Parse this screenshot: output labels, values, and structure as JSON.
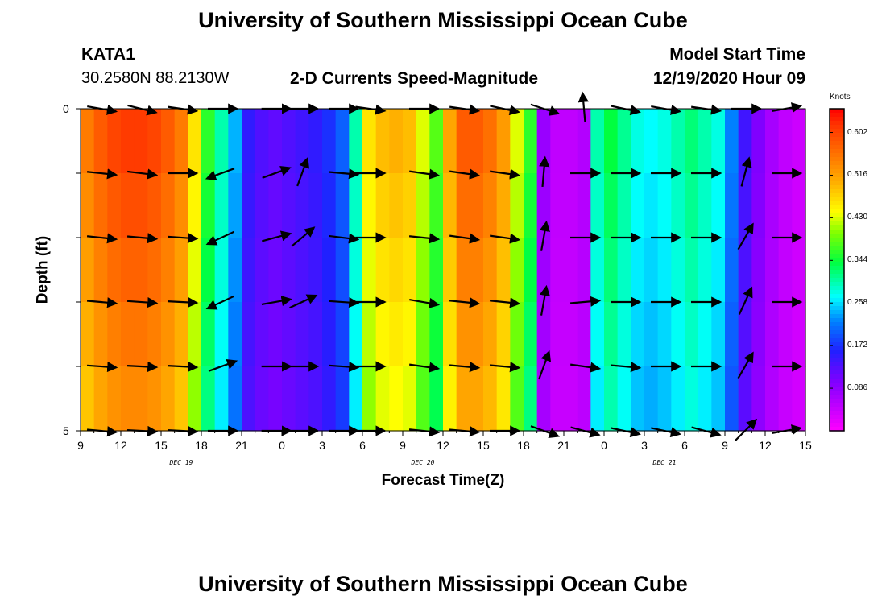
{
  "header": {
    "title": "University of Southern Mississippi Ocean Cube",
    "station": "KATA1",
    "coords": "30.2580N 88.2130W",
    "subtitle": "2-D Currents Speed-Magnitude",
    "model_start_label": "Model Start Time",
    "model_start_value": "12/19/2020 Hour 09"
  },
  "footer": {
    "title": "University of Southern Mississippi Ocean Cube"
  },
  "chart_data": {
    "type": "heatmap",
    "title": "2-D Currents Speed-Magnitude",
    "xlabel": "Forecast Time(Z)",
    "ylabel": "Depth (ft)",
    "x_ticks": [
      "9",
      "12",
      "15",
      "18",
      "21",
      "0",
      "3",
      "6",
      "9",
      "12",
      "15",
      "18",
      "21",
      "0",
      "3",
      "6",
      "9",
      "12",
      "15"
    ],
    "day_labels": [
      {
        "label": "DEC 19",
        "tick_index": 2.5
      },
      {
        "label": "DEC 20",
        "tick_index": 8.5
      },
      {
        "label": "DEC 21",
        "tick_index": 14.5
      }
    ],
    "y_ticks": [
      "0",
      "5"
    ],
    "ylim": [
      0,
      5
    ],
    "xrange_hours": [
      0,
      54
    ],
    "colorbar": {
      "unit": "Knots",
      "ticks": [
        "0.602",
        "0.516",
        "0.430",
        "0.344",
        "0.258",
        "0.172",
        "0.086"
      ],
      "range": [
        0.0,
        0.65
      ]
    },
    "speed_knots_by_hour": [
      0.55,
      0.58,
      0.6,
      0.61,
      0.61,
      0.6,
      0.58,
      0.55,
      0.46,
      0.36,
      0.3,
      0.24,
      0.15,
      0.13,
      0.12,
      0.13,
      0.14,
      0.15,
      0.17,
      0.2,
      0.3,
      0.46,
      0.49,
      0.5,
      0.49,
      0.43,
      0.38,
      0.51,
      0.58,
      0.58,
      0.56,
      0.52,
      0.43,
      0.36,
      0.08,
      0.05,
      0.05,
      0.06,
      0.3,
      0.34,
      0.31,
      0.28,
      0.27,
      0.28,
      0.3,
      0.32,
      0.3,
      0.28,
      0.22,
      0.14,
      0.1,
      0.07,
      0.05,
      0.04,
      0.2
    ],
    "vector_times_hours": [
      1.5,
      4.5,
      7.5,
      10.5,
      14.5,
      16.5,
      19.5,
      21.5,
      25.5,
      28.5,
      31.5,
      34.5,
      37.5,
      40.5,
      43.5,
      46.5,
      49.5,
      52.5
    ],
    "vector_depth_rows": [
      0,
      1,
      2,
      3,
      4,
      5
    ],
    "vector_angles_deg": [
      [
        -10,
        -14,
        -8,
        0,
        0,
        0,
        0,
        -8,
        0,
        -8,
        -12,
        -18,
        95,
        -12,
        -10,
        -8,
        0,
        10
      ],
      [
        -6,
        -7,
        0,
        -160,
        20,
        70,
        -5,
        0,
        -8,
        -8,
        -8,
        85,
        0,
        0,
        0,
        0,
        75,
        0
      ],
      [
        -6,
        -5,
        -4,
        -155,
        15,
        40,
        -7,
        0,
        -6,
        -8,
        -8,
        80,
        0,
        0,
        0,
        0,
        60,
        0
      ],
      [
        -5,
        -4,
        -3,
        -155,
        10,
        25,
        -4,
        0,
        -10,
        -6,
        -6,
        80,
        5,
        0,
        0,
        0,
        65,
        0
      ],
      [
        -4,
        -3,
        -3,
        20,
        0,
        0,
        -4,
        0,
        -8,
        -5,
        -5,
        70,
        -8,
        -5,
        0,
        0,
        60,
        0
      ],
      [
        -5,
        -3,
        -3,
        0,
        0,
        0,
        0,
        0,
        -6,
        -5,
        0,
        -20,
        -15,
        -12,
        -12,
        -15,
        45,
        10
      ]
    ]
  }
}
